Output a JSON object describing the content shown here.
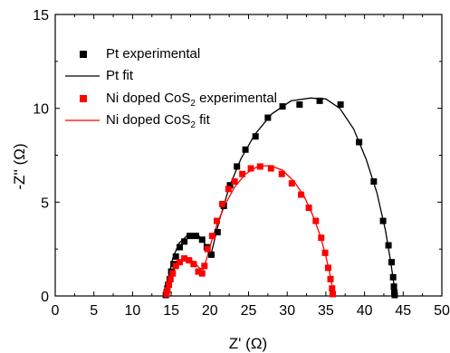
{
  "chart_data": {
    "type": "scatter",
    "xlabel_main": "Z'",
    "xlabel_unit": "(Ω)",
    "ylabel_main": "-Z''",
    "ylabel_unit": "(Ω)",
    "xlim": [
      0,
      50
    ],
    "ylim": [
      0,
      15
    ],
    "xticks": [
      "0",
      "5",
      "10",
      "15",
      "20",
      "25",
      "30",
      "35",
      "40",
      "45",
      "50"
    ],
    "yticks": [
      "0",
      "5",
      "10",
      "15"
    ],
    "grid": false,
    "legend_position": "top-left",
    "series": [
      {
        "name_main": "Pt experimental",
        "style": "square-markers",
        "color": "#000000",
        "x": [
          14.3,
          14.4,
          14.5,
          14.6,
          14.8,
          15.0,
          15.3,
          15.6,
          16.1,
          16.7,
          17.4,
          18.2,
          19.0,
          19.6,
          20.2,
          21.0,
          21.8,
          22.6,
          23.5,
          24.6,
          25.9,
          27.5,
          29.4,
          31.6,
          34.2,
          36.9,
          39.3,
          41.2,
          42.4,
          43.1,
          43.5,
          43.7,
          43.8,
          43.85,
          43.9
        ],
        "y": [
          0.05,
          0.2,
          0.4,
          0.6,
          0.9,
          1.3,
          1.7,
          2.1,
          2.6,
          2.9,
          3.2,
          3.2,
          3.0,
          2.6,
          2.2,
          3.4,
          4.8,
          5.9,
          6.9,
          7.8,
          8.5,
          9.5,
          10.1,
          10.2,
          10.4,
          10.2,
          8.2,
          6.1,
          4.0,
          2.7,
          1.8,
          1.0,
          0.5,
          0.2,
          0.05
        ]
      },
      {
        "name_main": "Pt fit",
        "style": "line",
        "color": "#000000",
        "x": [
          14.3,
          14.6,
          15.2,
          16.0,
          17.0,
          17.9,
          18.6,
          19.2,
          19.7,
          20.2,
          21.2,
          22.5,
          24.0,
          25.8,
          28.0,
          30.5,
          33.0,
          35.0,
          36.8,
          38.6,
          40.2,
          41.6,
          42.7,
          43.4,
          43.8,
          43.9
        ],
        "y": [
          0.0,
          0.9,
          2.0,
          2.8,
          3.2,
          3.3,
          3.2,
          2.9,
          2.5,
          2.3,
          4.0,
          5.8,
          7.3,
          8.6,
          9.7,
          10.4,
          10.55,
          10.5,
          10.0,
          8.9,
          7.3,
          5.5,
          3.5,
          1.8,
          0.6,
          0.0
        ]
      },
      {
        "name_main": "Ni doped CoS",
        "name_sub": "2",
        "name_tail": " experimental",
        "style": "square-markers",
        "color": "#ff0000",
        "x": [
          14.4,
          14.5,
          14.7,
          14.9,
          15.2,
          15.6,
          16.1,
          16.7,
          17.3,
          17.9,
          18.5,
          19.0,
          19.3,
          19.7,
          20.3,
          20.9,
          21.6,
          22.4,
          23.2,
          24.2,
          25.3,
          26.5,
          27.9,
          29.3,
          30.6,
          31.8,
          32.8,
          33.7,
          34.4,
          34.9,
          35.3,
          35.6,
          35.8,
          35.9
        ],
        "y": [
          0.1,
          0.3,
          0.6,
          0.9,
          1.2,
          1.6,
          1.8,
          2.0,
          1.9,
          1.7,
          1.3,
          1.2,
          1.6,
          2.5,
          3.2,
          4.0,
          4.9,
          5.7,
          6.1,
          6.5,
          6.8,
          6.9,
          6.8,
          6.5,
          6.0,
          5.4,
          4.7,
          4.0,
          3.1,
          2.3,
          1.5,
          0.9,
          0.4,
          0.1
        ]
      },
      {
        "name_main": "Ni doped CoS",
        "name_sub": "2",
        "name_tail": " fit",
        "style": "line",
        "color": "#ff0000",
        "x": [
          14.4,
          14.8,
          15.5,
          16.3,
          17.2,
          18.0,
          18.6,
          19.1,
          19.6,
          20.2,
          21.0,
          22.0,
          23.2,
          24.6,
          26.2,
          27.8,
          29.4,
          30.9,
          32.2,
          33.3,
          34.2,
          34.9,
          35.4,
          35.8,
          35.95
        ],
        "y": [
          0.0,
          0.8,
          1.5,
          1.9,
          2.0,
          1.8,
          1.5,
          1.4,
          2.0,
          2.9,
          3.9,
          4.9,
          5.8,
          6.5,
          6.9,
          6.95,
          6.7,
          6.1,
          5.3,
          4.3,
          3.3,
          2.3,
          1.4,
          0.6,
          0.0
        ]
      }
    ]
  }
}
